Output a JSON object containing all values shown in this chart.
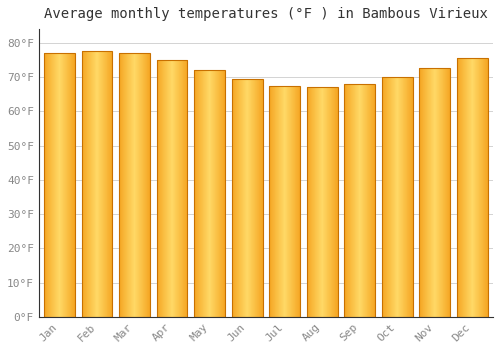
{
  "title": "Average monthly temperatures (°F ) in Bambous Virieux",
  "months": [
    "Jan",
    "Feb",
    "Mar",
    "Apr",
    "May",
    "Jun",
    "Jul",
    "Aug",
    "Sep",
    "Oct",
    "Nov",
    "Dec"
  ],
  "values": [
    77.0,
    77.5,
    77.0,
    75.0,
    72.0,
    69.5,
    67.5,
    67.0,
    68.0,
    70.0,
    72.5,
    75.5
  ],
  "bar_color_left": "#F5A623",
  "bar_color_center": "#FFD966",
  "bar_color_right": "#F5A623",
  "bar_edge_color": "#C87000",
  "background_color": "#FFFFFF",
  "plot_bg_color": "#FFFFFF",
  "grid_color": "#CCCCCC",
  "ytick_labels": [
    "0°F",
    "10°F",
    "20°F",
    "30°F",
    "40°F",
    "50°F",
    "60°F",
    "70°F",
    "80°F"
  ],
  "ytick_values": [
    0,
    10,
    20,
    30,
    40,
    50,
    60,
    70,
    80
  ],
  "ylim": [
    0,
    84
  ],
  "title_fontsize": 10,
  "tick_fontsize": 8,
  "tick_color": "#888888",
  "font_family": "monospace",
  "bar_width": 0.82
}
